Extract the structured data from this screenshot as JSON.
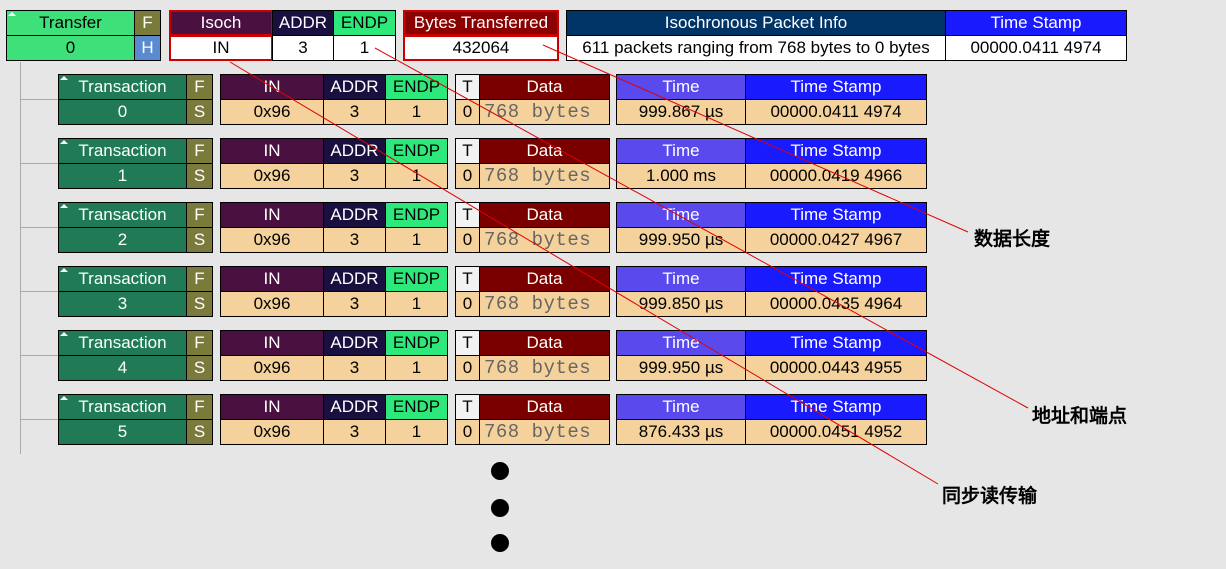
{
  "transfer": {
    "label": "Transfer",
    "f": "F",
    "id": "0",
    "h": "H",
    "isoch_label": "Isoch",
    "isoch_value": "IN",
    "addr_label": "ADDR",
    "addr_value": "3",
    "endp_label": "ENDP",
    "endp_value": "1",
    "bytes_label": "Bytes Transferred",
    "bytes_value": "432064",
    "packet_info_label": "Isochronous Packet Info",
    "packet_info_value": "611 packets ranging from 768 bytes to 0 bytes",
    "timestamp_label": "Time Stamp",
    "timestamp_value": "00000.0411 4974"
  },
  "headers": {
    "transaction": "Transaction",
    "f": "F",
    "s": "S",
    "in": "IN",
    "addr": "ADDR",
    "endp": "ENDP",
    "t": "T",
    "data": "Data",
    "time": "Time",
    "timestamp": "Time Stamp"
  },
  "transactions": [
    {
      "id": "0",
      "in": "0x96",
      "addr": "3",
      "endp": "1",
      "t": "0",
      "data": "768 bytes",
      "time": "999.867 µs",
      "timestamp": "00000.0411 4974"
    },
    {
      "id": "1",
      "in": "0x96",
      "addr": "3",
      "endp": "1",
      "t": "0",
      "data": "768 bytes",
      "time": "1.000 ms",
      "timestamp": "00000.0419 4966"
    },
    {
      "id": "2",
      "in": "0x96",
      "addr": "3",
      "endp": "1",
      "t": "0",
      "data": "768 bytes",
      "time": "999.950 µs",
      "timestamp": "00000.0427 4967"
    },
    {
      "id": "3",
      "in": "0x96",
      "addr": "3",
      "endp": "1",
      "t": "0",
      "data": "768 bytes",
      "time": "999.850 µs",
      "timestamp": "00000.0435 4964"
    },
    {
      "id": "4",
      "in": "0x96",
      "addr": "3",
      "endp": "1",
      "t": "0",
      "data": "768 bytes",
      "time": "999.950 µs",
      "timestamp": "00000.0443 4955"
    },
    {
      "id": "5",
      "in": "0x96",
      "addr": "3",
      "endp": "1",
      "t": "0",
      "data": "768 bytes",
      "time": "876.433 µs",
      "timestamp": "00000.0451 4952"
    }
  ],
  "annotations": {
    "data_length": "数据长度",
    "addr_endpoint": "地址和端点",
    "isoch_read": "同步读传输"
  },
  "colors": {
    "transfer_bg": "#3ee07a",
    "transfer_f": "#7a7a3a",
    "transfer_h": "#5a8ad0",
    "isoch_bg": "#4a1140",
    "addr_bg": "#1a1040",
    "endp_bg": "#2de87a",
    "bytes_bg": "#8b0000",
    "packet_bg": "#003366",
    "timestamp_bg": "#1a1aff",
    "transaction_bg": "#1f7a55",
    "fs_bg": "#7a7a3a",
    "data_bg": "#7a0000",
    "time_bg": "#5a4aee",
    "value_bg": "#f5d29b",
    "leader_line": "#e00000"
  }
}
